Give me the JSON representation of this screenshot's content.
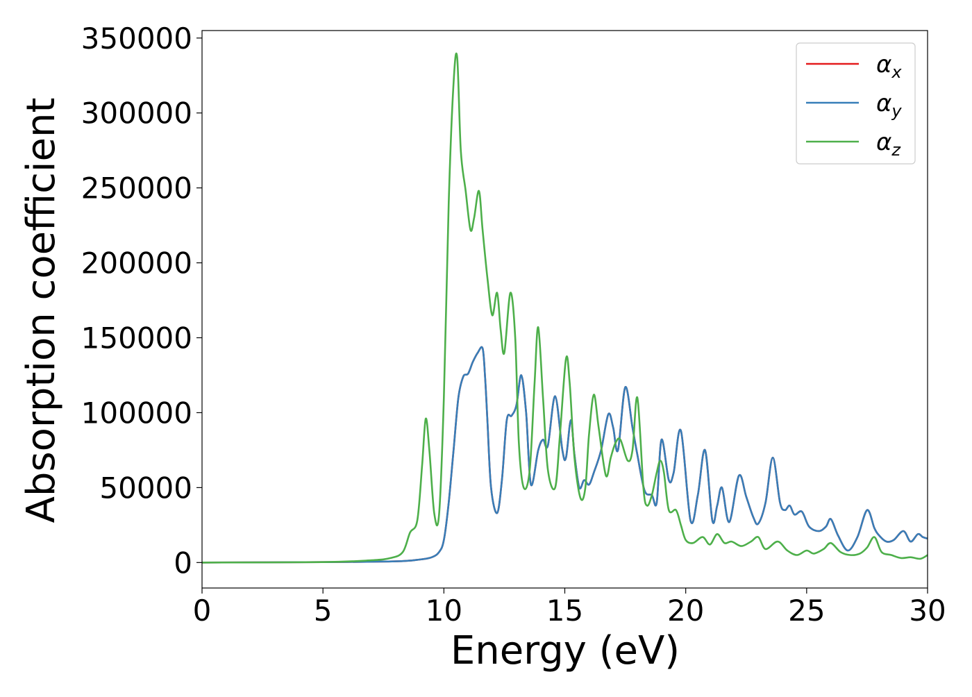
{
  "chart_data": {
    "type": "line",
    "title": "",
    "xlabel": "Energy (eV)",
    "ylabel": "Absorption coefficient",
    "xlim": [
      0,
      30
    ],
    "ylim": [
      -17000,
      355000
    ],
    "xticks": [
      0,
      5,
      10,
      15,
      20,
      25,
      30
    ],
    "xtick_labels": [
      "0",
      "5",
      "10",
      "15",
      "20",
      "25",
      "30"
    ],
    "yticks": [
      0,
      50000,
      100000,
      150000,
      200000,
      250000,
      300000,
      350000
    ],
    "ytick_labels": [
      "0",
      "50000",
      "100000",
      "150000",
      "200000",
      "250000",
      "300000",
      "350000"
    ],
    "grid": false,
    "legend_position": "top-right",
    "series": [
      {
        "name": "α_x",
        "legend_symbol": "α",
        "legend_sub": "x",
        "color": "#e41a1c",
        "x": [
          0,
          5,
          8,
          9,
          9.5,
          9.8,
          10,
          10.2,
          10.4,
          10.6,
          10.8,
          11.0,
          11.2,
          11.4,
          11.6,
          11.7,
          11.8,
          11.95,
          12.2,
          12.4,
          12.6,
          12.8,
          13.0,
          13.2,
          13.4,
          13.6,
          13.9,
          14.1,
          14.3,
          14.6,
          14.9,
          15.05,
          15.25,
          15.4,
          15.6,
          15.8,
          16.0,
          16.2,
          16.5,
          16.8,
          17.0,
          17.2,
          17.5,
          17.8,
          18.0,
          18.3,
          18.6,
          18.8,
          19.0,
          19.3,
          19.5,
          19.8,
          20.2,
          20.5,
          20.8,
          21.1,
          21.3,
          21.5,
          21.8,
          22.2,
          22.5,
          22.8,
          23.0,
          23.3,
          23.6,
          23.9,
          24.1,
          24.3,
          24.5,
          24.8,
          25.1,
          25.5,
          25.8,
          26.0,
          26.3,
          26.7,
          27.1,
          27.5,
          27.8,
          28.0,
          28.3,
          28.6,
          29.0,
          29.3,
          29.6,
          29.8,
          30.0
        ],
        "values": [
          0,
          300,
          800,
          2000,
          3500,
          7000,
          15000,
          40000,
          75000,
          110000,
          124000,
          126000,
          134000,
          140000,
          143000,
          125000,
          95000,
          50000,
          33000,
          55000,
          95000,
          98000,
          105000,
          125000,
          100000,
          52000,
          75000,
          82000,
          78000,
          111000,
          75000,
          70000,
          95000,
          72000,
          50000,
          55000,
          52000,
          60000,
          75000,
          99000,
          90000,
          75000,
          117000,
          90000,
          72000,
          48000,
          45000,
          40000,
          82000,
          55000,
          60000,
          88000,
          28000,
          45000,
          75000,
          28000,
          38000,
          50000,
          27000,
          58000,
          44000,
          30000,
          26000,
          40000,
          70000,
          40000,
          35000,
          38000,
          32000,
          34000,
          24000,
          21000,
          24000,
          29000,
          18000,
          8000,
          17000,
          35000,
          23000,
          18000,
          14000,
          15000,
          21000,
          14000,
          19000,
          17000,
          16000
        ]
      },
      {
        "name": "α_y",
        "legend_symbol": "α",
        "legend_sub": "y",
        "color": "#377eb8",
        "x": [
          0,
          5,
          8,
          9,
          9.5,
          9.8,
          10,
          10.2,
          10.4,
          10.6,
          10.8,
          11.0,
          11.2,
          11.4,
          11.6,
          11.7,
          11.8,
          11.95,
          12.2,
          12.4,
          12.6,
          12.8,
          13.0,
          13.2,
          13.4,
          13.6,
          13.9,
          14.1,
          14.3,
          14.6,
          14.9,
          15.05,
          15.25,
          15.4,
          15.6,
          15.8,
          16.0,
          16.2,
          16.5,
          16.8,
          17.0,
          17.2,
          17.5,
          17.8,
          18.0,
          18.3,
          18.6,
          18.8,
          19.0,
          19.3,
          19.5,
          19.8,
          20.2,
          20.5,
          20.8,
          21.1,
          21.3,
          21.5,
          21.8,
          22.2,
          22.5,
          22.8,
          23.0,
          23.3,
          23.6,
          23.9,
          24.1,
          24.3,
          24.5,
          24.8,
          25.1,
          25.5,
          25.8,
          26.0,
          26.3,
          26.7,
          27.1,
          27.5,
          27.8,
          28.0,
          28.3,
          28.6,
          29.0,
          29.3,
          29.6,
          29.8,
          30.0
        ],
        "values": [
          0,
          300,
          800,
          2000,
          3500,
          7000,
          15000,
          40000,
          75000,
          110000,
          124000,
          126000,
          134000,
          140000,
          143000,
          125000,
          95000,
          50000,
          33000,
          55000,
          95000,
          98000,
          105000,
          125000,
          100000,
          52000,
          75000,
          82000,
          78000,
          111000,
          75000,
          70000,
          95000,
          72000,
          50000,
          55000,
          52000,
          60000,
          75000,
          99000,
          90000,
          75000,
          117000,
          90000,
          72000,
          48000,
          45000,
          40000,
          82000,
          55000,
          60000,
          88000,
          28000,
          45000,
          75000,
          28000,
          38000,
          50000,
          27000,
          58000,
          44000,
          30000,
          26000,
          40000,
          70000,
          40000,
          35000,
          38000,
          32000,
          34000,
          24000,
          21000,
          24000,
          29000,
          18000,
          8000,
          17000,
          35000,
          23000,
          18000,
          14000,
          15000,
          21000,
          14000,
          19000,
          17000,
          16000
        ]
      },
      {
        "name": "α_z",
        "legend_symbol": "α",
        "legend_sub": "z",
        "color": "#4daf4a",
        "x": [
          0,
          5,
          7,
          7.8,
          8.3,
          8.6,
          8.9,
          9.1,
          9.25,
          9.4,
          9.6,
          9.8,
          10.0,
          10.2,
          10.4,
          10.55,
          10.7,
          10.9,
          11.1,
          11.25,
          11.45,
          11.6,
          11.8,
          12.0,
          12.2,
          12.35,
          12.5,
          12.75,
          12.95,
          13.1,
          13.3,
          13.55,
          13.75,
          13.9,
          14.1,
          14.3,
          14.6,
          14.8,
          15.05,
          15.2,
          15.4,
          15.65,
          15.85,
          16.0,
          16.2,
          16.4,
          16.7,
          16.9,
          17.1,
          17.3,
          17.6,
          17.8,
          18.0,
          18.25,
          18.4,
          18.6,
          18.8,
          18.95,
          19.1,
          19.3,
          19.6,
          19.8,
          20.0,
          20.3,
          20.7,
          21.0,
          21.3,
          21.6,
          21.9,
          22.3,
          22.7,
          23.0,
          23.3,
          23.8,
          24.2,
          24.6,
          25.0,
          25.3,
          25.7,
          26.0,
          26.4,
          26.8,
          27.2,
          27.5,
          27.8,
          28.1,
          28.5,
          28.9,
          29.3,
          29.7,
          30.0
        ],
        "values": [
          0,
          300,
          1500,
          3000,
          7000,
          20000,
          28000,
          65000,
          96000,
          75000,
          33000,
          32000,
          110000,
          240000,
          320000,
          337000,
          275000,
          248000,
          222000,
          230000,
          248000,
          222000,
          190000,
          165000,
          180000,
          155000,
          140000,
          180000,
          150000,
          80000,
          50000,
          62000,
          120000,
          157000,
          110000,
          62000,
          50000,
          85000,
          136000,
          120000,
          70000,
          43000,
          50000,
          85000,
          112000,
          90000,
          58000,
          70000,
          80000,
          82000,
          68000,
          75000,
          110000,
          50000,
          38000,
          45000,
          60000,
          68000,
          60000,
          35000,
          35000,
          25000,
          15000,
          13000,
          17000,
          12000,
          19000,
          13000,
          14000,
          11000,
          14000,
          17000,
          9000,
          14000,
          8000,
          5000,
          8000,
          6000,
          9000,
          13000,
          7000,
          5000,
          6000,
          10000,
          17000,
          7000,
          5000,
          3000,
          3500,
          2500,
          5000
        ]
      }
    ]
  }
}
